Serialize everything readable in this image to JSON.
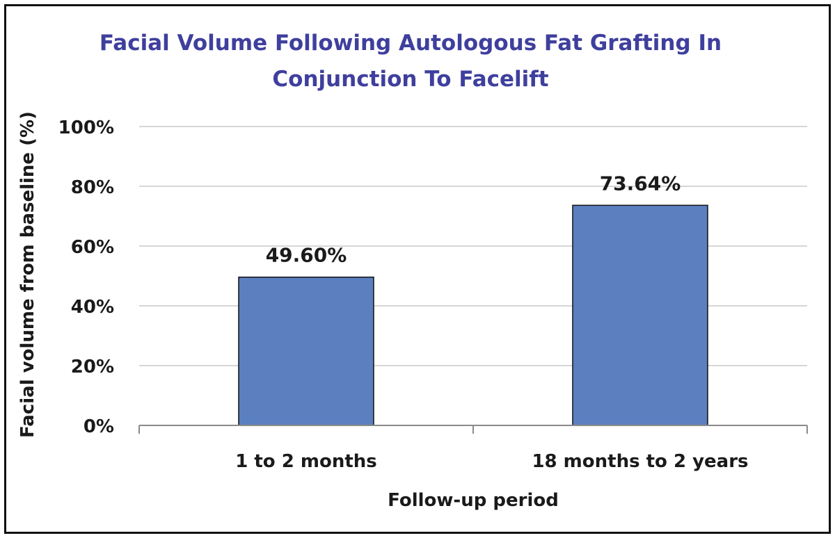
{
  "chart_data": {
    "type": "bar",
    "title_lines": [
      "Facial Volume Following Autologous Fat Grafting In",
      "Conjunction To Facelift"
    ],
    "categories": [
      "1 to 2 months",
      "18 months to 2 years"
    ],
    "values": [
      49.6,
      73.64
    ],
    "data_labels": [
      "49.60%",
      "73.64%"
    ],
    "xlabel": "Follow-up period",
    "ylabel": "Facial volume from baseline (%)",
    "ylim": [
      0,
      100
    ],
    "yticks": [
      0,
      20,
      40,
      60,
      80,
      100
    ],
    "ytick_labels": [
      "0%",
      "20%",
      "40%",
      "60%",
      "80%",
      "100%"
    ],
    "grid": true,
    "legend": "none",
    "colors": {
      "bar": "#5b7fbf",
      "bar_border": "#111111",
      "title": "#3f3f9e",
      "grid": "#c8c8c8"
    }
  }
}
